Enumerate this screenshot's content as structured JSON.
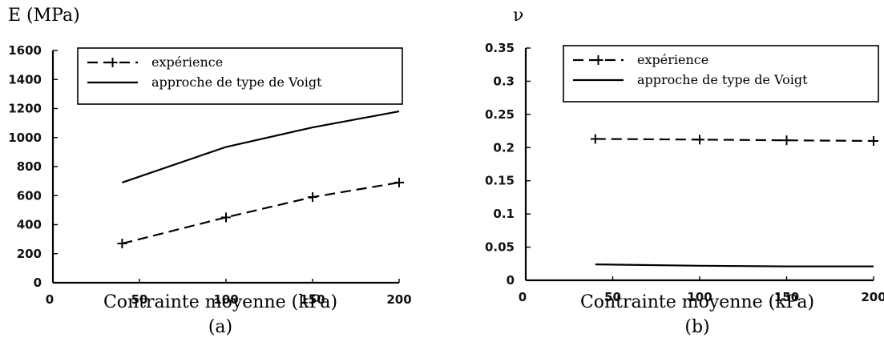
{
  "chart_data": [
    {
      "type": "line",
      "ylabel": "E (MPa)",
      "xlabel": "Contrainte moyenne (kPa)",
      "caption": "(a)",
      "x_ticks": [
        "0",
        "50",
        "100",
        "150",
        "200"
      ],
      "y_ticks": [
        "0",
        "200",
        "400",
        "600",
        "800",
        "1000",
        "1200",
        "1400",
        "1600"
      ],
      "xlim": [
        0,
        200
      ],
      "ylim": [
        0,
        1600
      ],
      "grid": false,
      "legend_position": "top",
      "series": [
        {
          "name": "expérience",
          "style": "dashed-plus",
          "x": [
            40,
            100,
            150,
            200
          ],
          "y": [
            270,
            450,
            590,
            690
          ]
        },
        {
          "name": "approche de type de Voigt",
          "style": "solid",
          "x": [
            40,
            100,
            150,
            200
          ],
          "y": [
            690,
            935,
            1070,
            1180
          ]
        }
      ]
    },
    {
      "type": "line",
      "ylabel": "ν",
      "xlabel": "Contrainte moyenne (kPa)",
      "caption": "(b)",
      "x_ticks": [
        "0",
        "50",
        "100",
        "150",
        "200"
      ],
      "y_ticks": [
        "0",
        "0.05",
        "0.1",
        "0.15",
        "0.2",
        "0.25",
        "0.3",
        "0.35"
      ],
      "xlim": [
        0,
        200
      ],
      "ylim": [
        0,
        0.35
      ],
      "grid": false,
      "legend_position": "top",
      "series": [
        {
          "name": "expérience",
          "style": "dashed-plus",
          "x": [
            40,
            100,
            150,
            200
          ],
          "y": [
            0.213,
            0.212,
            0.211,
            0.21
          ]
        },
        {
          "name": "approche de type de Voigt",
          "style": "solid",
          "x": [
            40,
            100,
            150,
            200
          ],
          "y": [
            0.024,
            0.022,
            0.021,
            0.021
          ]
        }
      ]
    }
  ]
}
